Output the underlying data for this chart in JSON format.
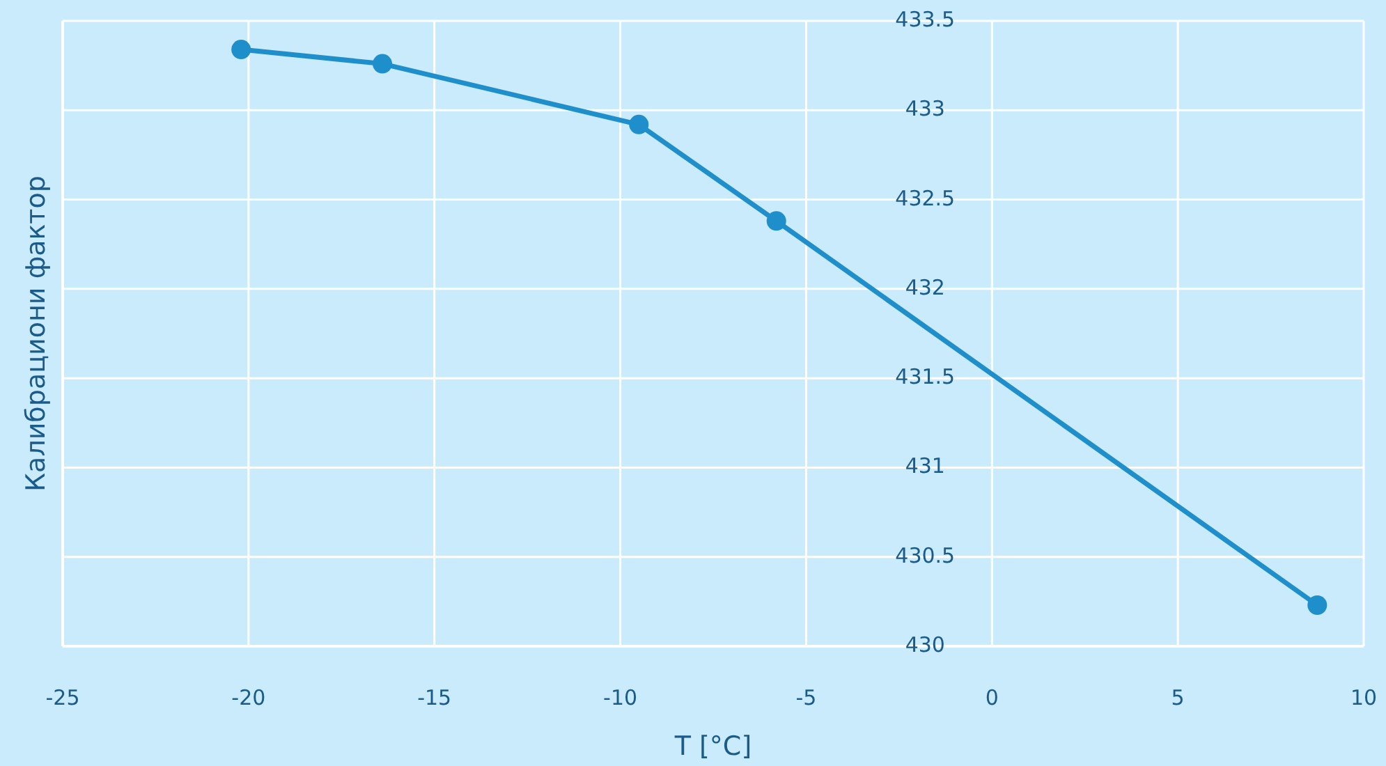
{
  "chart_data": {
    "type": "line",
    "xlabel": "T [°C]",
    "ylabel": "Калибрациони фактор",
    "x": [
      -20.2,
      -16.4,
      -9.5,
      -5.8,
      8.75
    ],
    "series": [
      {
        "color": "#1f8fcc",
        "values": [
          433.34,
          433.26,
          432.92,
          432.38,
          430.23
        ]
      }
    ],
    "xlim": [
      -25,
      10
    ],
    "xticks": [
      -25,
      -20,
      -15,
      -10,
      -5,
      0,
      5,
      10
    ],
    "ylim": [
      430,
      433.5
    ],
    "yticks": [
      430,
      430.5,
      431,
      431.5,
      432,
      432.5,
      433,
      433.5
    ],
    "grid": true,
    "marker": "circle",
    "line_style": "solid"
  }
}
